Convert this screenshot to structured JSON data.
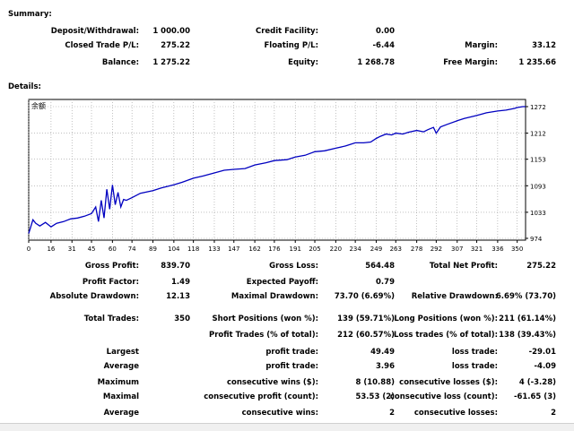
{
  "summary": {
    "title": "Summary:",
    "rows": [
      [
        {
          "label": "Deposit/Withdrawal:",
          "value": "1 000.00"
        },
        {
          "label": "Credit Facility:",
          "value": "0.00"
        },
        {
          "label": "",
          "value": ""
        }
      ],
      [
        {
          "label": "Closed Trade P/L:",
          "value": "275.22"
        },
        {
          "label": "Floating P/L:",
          "value": "-6.44"
        },
        {
          "label": "Margin:",
          "value": "33.12"
        }
      ],
      [
        {
          "label": "Balance:",
          "value": "1 275.22"
        },
        {
          "label": "Equity:",
          "value": "1 268.78"
        },
        {
          "label": "Free Margin:",
          "value": "1 235.66"
        }
      ]
    ]
  },
  "details": {
    "title": "Details:",
    "rows": [
      [
        {
          "label": "Gross Profit:",
          "value": "839.70"
        },
        {
          "label": "Gross Loss:",
          "value": "564.48"
        },
        {
          "label": "Total Net Profit:",
          "value": "275.22"
        }
      ],
      [
        {
          "label": "Profit Factor:",
          "value": "1.49"
        },
        {
          "label": "Expected Payoff:",
          "value": "0.79"
        },
        {
          "label": "",
          "value": ""
        }
      ],
      [
        {
          "label": "Absolute Drawdown:",
          "value": "12.13"
        },
        {
          "label": "Maximal Drawdown:",
          "value": "73.70 (6.69%)"
        },
        {
          "label": "Relative Drawdown:",
          "value": "6.69% (73.70)"
        }
      ],
      [
        {
          "label": "Total Trades:",
          "value": "350"
        },
        {
          "label": "Short Positions (won %):",
          "value": "139 (59.71%)"
        },
        {
          "label": "Long Positions (won %):",
          "value": "211 (61.14%)"
        }
      ],
      [
        {
          "label": "",
          "value": ""
        },
        {
          "label": "Profit Trades (% of total):",
          "value": "212 (60.57%)"
        },
        {
          "label": "Loss trades (% of total):",
          "value": "138 (39.43%)"
        }
      ],
      [
        {
          "label": "Largest",
          "value": ""
        },
        {
          "label": "profit trade:",
          "value": "49.49"
        },
        {
          "label": "loss trade:",
          "value": "-29.01"
        }
      ],
      [
        {
          "label": "Average",
          "value": ""
        },
        {
          "label": "profit trade:",
          "value": "3.96"
        },
        {
          "label": "loss trade:",
          "value": "-4.09"
        }
      ],
      [
        {
          "label": "Maximum",
          "value": ""
        },
        {
          "label": "consecutive wins ($):",
          "value": "8 (10.88)"
        },
        {
          "label": "consecutive losses ($):",
          "value": "4 (-3.28)"
        }
      ],
      [
        {
          "label": "Maximal",
          "value": ""
        },
        {
          "label": "consecutive profit (count):",
          "value": "53.53 (2)"
        },
        {
          "label": "consecutive loss (count):",
          "value": "-61.65 (3)"
        }
      ],
      [
        {
          "label": "Average",
          "value": ""
        },
        {
          "label": "consecutive wins:",
          "value": "2"
        },
        {
          "label": "consecutive losses:",
          "value": "2"
        }
      ]
    ]
  },
  "colors": {
    "line": "#0000c0",
    "grid": "#9a9a9a",
    "axis": "#000000"
  },
  "chart_data": {
    "type": "line",
    "title": "",
    "corner_label": "余额",
    "xlabel": "",
    "ylabel": "",
    "xlim": [
      0,
      356
    ],
    "ylim": [
      974,
      1272
    ],
    "x_ticks": [
      0,
      16,
      31,
      45,
      60,
      74,
      89,
      104,
      118,
      133,
      147,
      162,
      176,
      191,
      205,
      220,
      234,
      249,
      263,
      278,
      292,
      307,
      321,
      336,
      350
    ],
    "y_ticks": [
      974,
      1033,
      1093,
      1153,
      1212,
      1272
    ],
    "grid": true,
    "legend": "none",
    "series": [
      {
        "x": [
          0,
          3,
          5,
          8,
          12,
          16,
          20,
          25,
          30,
          35,
          40,
          45,
          48,
          50,
          52,
          54,
          56,
          58,
          60,
          62,
          64,
          66,
          68,
          70,
          74,
          80,
          89,
          95,
          104,
          110,
          118,
          125,
          133,
          140,
          147,
          155,
          162,
          170,
          176,
          185,
          191,
          198,
          205,
          212,
          220,
          227,
          234,
          240,
          245,
          249,
          252,
          256,
          260,
          263,
          268,
          272,
          278,
          283,
          286,
          290,
          292,
          295,
          300,
          307,
          312,
          321,
          328,
          336,
          342,
          348,
          350,
          354,
          356
        ],
        "values": [
          985,
          1016,
          1008,
          1002,
          1010,
          1000,
          1008,
          1012,
          1018,
          1020,
          1024,
          1030,
          1045,
          1012,
          1060,
          1020,
          1085,
          1040,
          1095,
          1050,
          1078,
          1045,
          1062,
          1060,
          1066,
          1076,
          1082,
          1088,
          1095,
          1101,
          1110,
          1115,
          1122,
          1128,
          1130,
          1132,
          1140,
          1145,
          1150,
          1152,
          1158,
          1162,
          1170,
          1172,
          1178,
          1183,
          1190,
          1190,
          1192,
          1200,
          1205,
          1210,
          1208,
          1212,
          1210,
          1214,
          1218,
          1215,
          1220,
          1225,
          1212,
          1226,
          1232,
          1240,
          1245,
          1252,
          1258,
          1262,
          1264,
          1268,
          1270,
          1272,
          1272
        ]
      }
    ]
  }
}
